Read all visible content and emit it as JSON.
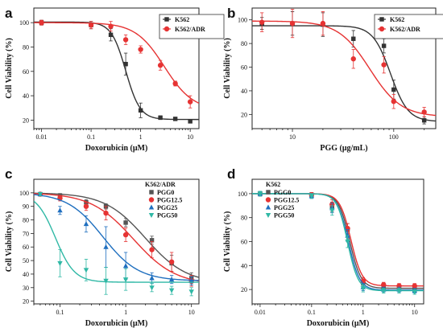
{
  "figure": {
    "panels": [
      {
        "letter": "a",
        "xlabel": "Doxorubicin (μM)",
        "ylabel": "Cell Viability (%)"
      },
      {
        "letter": "b",
        "xlabel": "PGG (μg/mL)",
        "ylabel": "Cell Viability (%)"
      },
      {
        "letter": "c",
        "xlabel": "Doxorubicin (μM)",
        "ylabel": "Cell Viability (%)",
        "legend_title": "K562/ADR"
      },
      {
        "letter": "d",
        "xlabel": "Doxorubicin (μM)",
        "ylabel": "Cell Viability (%)",
        "legend_title": "K562"
      }
    ]
  },
  "chart_data": [
    {
      "panel": "a",
      "type": "scatter",
      "xscale": "log",
      "xlim": [
        0.007,
        15
      ],
      "ylim": [
        13,
        112
      ],
      "xticks": [
        0.01,
        0.1,
        1,
        10
      ],
      "xticklabels": [
        "0.01",
        "0.1",
        "1",
        "10"
      ],
      "yticks": [
        20,
        40,
        60,
        80,
        100
      ],
      "legend": "top-right",
      "series": [
        {
          "name": "K562",
          "color": "#333333",
          "marker": "square",
          "x": [
            0.01,
            0.1,
            0.25,
            0.5,
            1,
            2.5,
            5,
            10
          ],
          "y": [
            100,
            98,
            90,
            66,
            28,
            22,
            21,
            19
          ],
          "err": [
            2,
            3,
            5,
            9,
            6,
            1.5,
            1,
            1
          ],
          "fit": {
            "top": 100.5,
            "bottom": 20.5,
            "ic50": 0.5,
            "hill": 3
          }
        },
        {
          "name": "K562/ADR",
          "color": "#e63333",
          "marker": "circle",
          "x": [
            0.01,
            0.1,
            0.25,
            0.5,
            1,
            2.5,
            5,
            10
          ],
          "y": [
            100,
            98,
            97,
            86,
            78,
            65,
            50,
            35
          ],
          "err": [
            2,
            3,
            4,
            4,
            3,
            4,
            2,
            5
          ],
          "fit": {
            "top": 100,
            "bottom": 28,
            "ic50": 3,
            "hill": 1.5
          }
        }
      ]
    },
    {
      "panel": "b",
      "type": "scatter",
      "xscale": "log",
      "xlim": [
        4,
        260
      ],
      "ylim": [
        8,
        110
      ],
      "xticks": [
        10,
        100
      ],
      "xticklabels": [
        "10",
        "100"
      ],
      "yticks": [
        20,
        40,
        60,
        80,
        100
      ],
      "legend": "top-right",
      "series": [
        {
          "name": "K562",
          "color": "#333333",
          "marker": "square",
          "x": [
            5,
            10,
            20,
            40,
            80,
            100,
            200
          ],
          "y": [
            97,
            97,
            96,
            84,
            78,
            41,
            15
          ],
          "err": [
            5,
            10,
            10,
            7,
            6,
            8,
            3
          ],
          "fit": {
            "top": 95,
            "bottom": 14,
            "ic50": 93,
            "hill": 5
          }
        },
        {
          "name": "K562/ADR",
          "color": "#e63333",
          "marker": "circle",
          "x": [
            5,
            10,
            20,
            40,
            80,
            100,
            200
          ],
          "y": [
            98,
            97,
            97,
            67,
            62,
            31,
            22
          ],
          "err": [
            8,
            12,
            10,
            8,
            7,
            6,
            4
          ],
          "fit": {
            "top": 99,
            "bottom": 18,
            "ic50": 58,
            "hill": 2.8
          }
        }
      ]
    },
    {
      "panel": "c",
      "type": "scatter",
      "xscale": "log",
      "xlim": [
        0.04,
        13
      ],
      "ylim": [
        18,
        110
      ],
      "xticks": [
        0.1,
        1,
        10
      ],
      "xticklabels": [
        "0.1",
        "1",
        "10"
      ],
      "yticks": [
        20,
        30,
        40,
        50,
        60,
        70,
        80,
        90,
        100
      ],
      "legend": "top-right",
      "series": [
        {
          "name": "PGG0",
          "color": "#555555",
          "marker": "square",
          "x": [
            0.05,
            0.1,
            0.25,
            0.5,
            1,
            2.5,
            5,
            10
          ],
          "y": [
            99,
            98,
            93,
            90,
            78,
            65,
            48,
            37
          ],
          "err": [
            1,
            1.5,
            2,
            2,
            3,
            3,
            6,
            4
          ],
          "fit": {
            "top": 100,
            "bottom": 33,
            "ic50": 2,
            "hill": 1.4
          }
        },
        {
          "name": "PGG12.5",
          "color": "#e63333",
          "marker": "circle",
          "x": [
            0.05,
            0.1,
            0.25,
            0.5,
            1,
            2.5,
            5,
            10
          ],
          "y": [
            99,
            96,
            90,
            85,
            69,
            58,
            49,
            35
          ],
          "err": [
            1,
            2,
            3,
            5,
            5,
            6,
            7,
            4
          ],
          "fit": {
            "top": 100,
            "bottom": 32,
            "ic50": 1.3,
            "hill": 1.35
          }
        },
        {
          "name": "PGG25",
          "color": "#1f6fbf",
          "marker": "triangle-up",
          "x": [
            0.05,
            0.1,
            0.25,
            0.5,
            1,
            2.5,
            5,
            10
          ],
          "y": [
            99,
            87,
            77,
            60,
            46,
            37,
            36,
            35
          ],
          "err": [
            1,
            3,
            6,
            15,
            10,
            4,
            3,
            3
          ],
          "fit": {
            "top": 100,
            "bottom": 35,
            "ic50": 0.45,
            "hill": 1.6
          }
        },
        {
          "name": "PGG50",
          "color": "#2fb8a5",
          "marker": "triangle-down",
          "x": [
            0.05,
            0.1,
            0.25,
            0.5,
            1,
            2.5,
            5,
            10
          ],
          "y": [
            99,
            48,
            43,
            35,
            36,
            30,
            28,
            27
          ],
          "err": [
            1,
            10,
            8,
            10,
            8,
            3,
            3,
            3
          ],
          "fit": {
            "top": 100,
            "bottom": 34,
            "ic50": 0.085,
            "hill": 3
          }
        }
      ]
    },
    {
      "panel": "d",
      "type": "scatter",
      "xscale": "log",
      "xlim": [
        0.007,
        15
      ],
      "ylim": [
        8,
        112
      ],
      "xticks": [
        0.01,
        0.1,
        1,
        10
      ],
      "xticklabels": [
        "0.01",
        "0.1",
        "1",
        "10"
      ],
      "yticks": [
        20,
        40,
        60,
        80,
        100
      ],
      "legend": "top-left",
      "series": [
        {
          "name": "PGG0",
          "color": "#555555",
          "marker": "square",
          "x": [
            0.01,
            0.1,
            0.25,
            0.5,
            1,
            2.5,
            5,
            10
          ],
          "y": [
            100,
            99,
            89,
            70,
            25,
            22,
            22,
            20
          ],
          "err": [
            2,
            2,
            4,
            5,
            3,
            2,
            2,
            2
          ],
          "fit": {
            "top": 100,
            "bottom": 21,
            "ic50": 0.55,
            "hill": 4
          }
        },
        {
          "name": "PGG12.5",
          "color": "#e63333",
          "marker": "circle",
          "x": [
            0.01,
            0.1,
            0.25,
            0.5,
            1,
            2.5,
            5,
            10
          ],
          "y": [
            100,
            99,
            91,
            71,
            27,
            24,
            23,
            23
          ],
          "err": [
            2,
            2,
            4,
            4,
            3,
            2,
            2,
            2
          ],
          "fit": {
            "top": 100,
            "bottom": 23,
            "ic50": 0.58,
            "hill": 4
          }
        },
        {
          "name": "PGG25",
          "color": "#1f6fbf",
          "marker": "triangle-up",
          "x": [
            0.01,
            0.1,
            0.25,
            0.5,
            1,
            2.5,
            5,
            10
          ],
          "y": [
            100,
            98,
            88,
            65,
            22,
            20,
            20,
            19
          ],
          "err": [
            2,
            2,
            4,
            5,
            3,
            2,
            2,
            2
          ],
          "fit": {
            "top": 100,
            "bottom": 19.5,
            "ic50": 0.52,
            "hill": 4
          }
        },
        {
          "name": "PGG50",
          "color": "#2fb8a5",
          "marker": "triangle-down",
          "x": [
            0.01,
            0.1,
            0.25,
            0.5,
            1,
            2.5,
            5,
            10
          ],
          "y": [
            100,
            98,
            86,
            60,
            21,
            19,
            19,
            18
          ],
          "err": [
            2,
            2,
            4,
            5,
            3,
            2,
            2,
            2
          ],
          "fit": {
            "top": 100,
            "bottom": 19,
            "ic50": 0.5,
            "hill": 4.2
          }
        }
      ]
    }
  ]
}
